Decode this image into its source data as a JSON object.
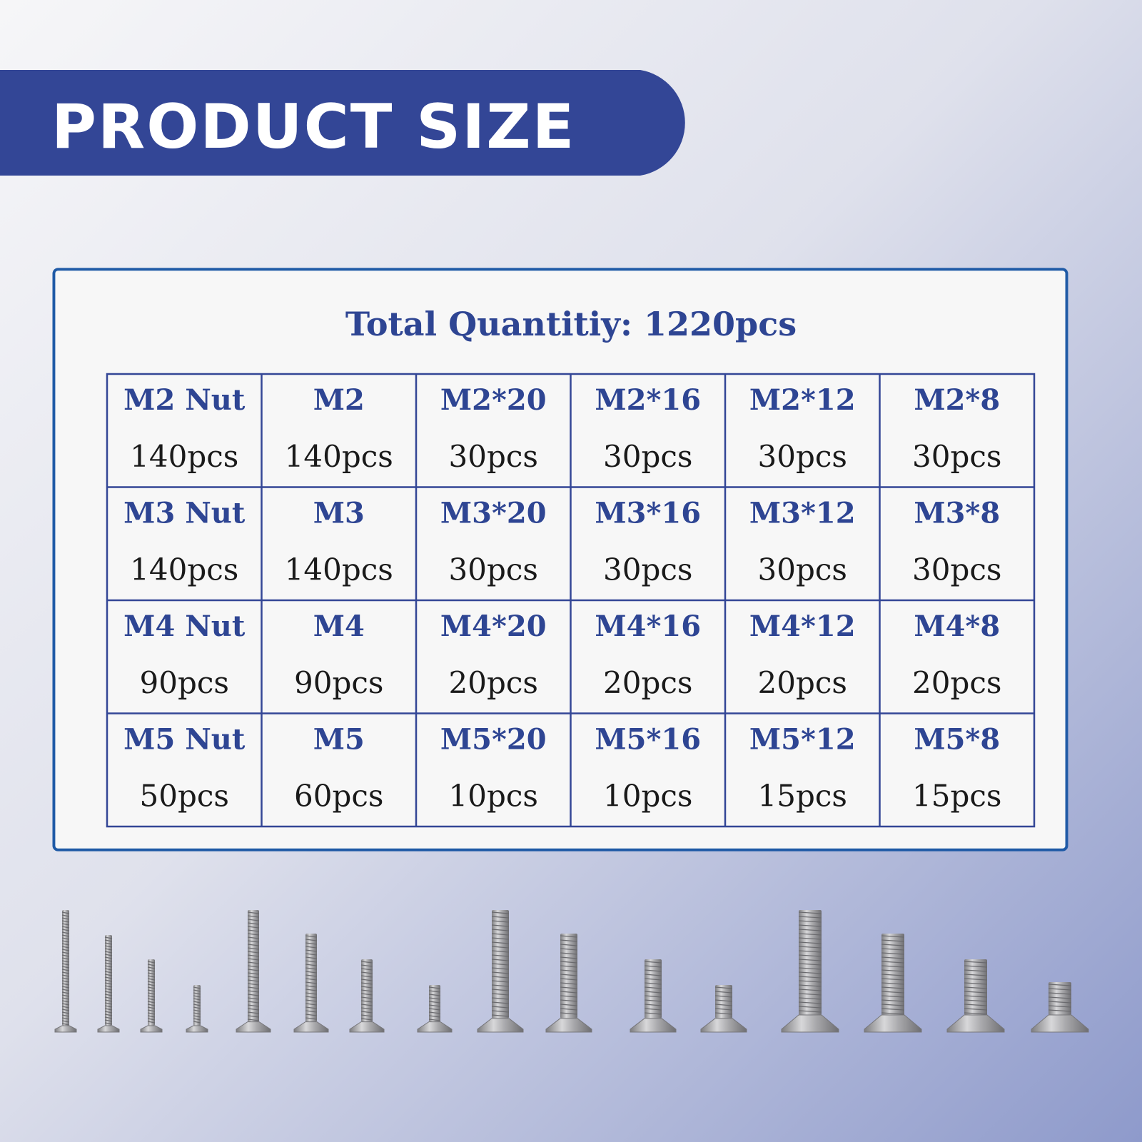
{
  "header": {
    "title": "PRODUCT SIZE"
  },
  "panel": {
    "title": "Total Quantitiy: 1220pcs"
  },
  "table": {
    "rows": [
      [
        {
          "name": "M2 Nut",
          "qty": "140pcs"
        },
        {
          "name": "M2",
          "qty": "140pcs"
        },
        {
          "name": "M2*20",
          "qty": "30pcs"
        },
        {
          "name": "M2*16",
          "qty": "30pcs"
        },
        {
          "name": "M2*12",
          "qty": "30pcs"
        },
        {
          "name": "M2*8",
          "qty": "30pcs"
        }
      ],
      [
        {
          "name": "M3 Nut",
          "qty": "140pcs"
        },
        {
          "name": "M3",
          "qty": "140pcs"
        },
        {
          "name": "M3*20",
          "qty": "30pcs"
        },
        {
          "name": "M3*16",
          "qty": "30pcs"
        },
        {
          "name": "M3*12",
          "qty": "30pcs"
        },
        {
          "name": "M3*8",
          "qty": "30pcs"
        }
      ],
      [
        {
          "name": "M4 Nut",
          "qty": "90pcs"
        },
        {
          "name": "M4",
          "qty": "90pcs"
        },
        {
          "name": "M4*20",
          "qty": "20pcs"
        },
        {
          "name": "M4*16",
          "qty": "20pcs"
        },
        {
          "name": "M4*12",
          "qty": "20pcs"
        },
        {
          "name": "M4*8",
          "qty": "20pcs"
        }
      ],
      [
        {
          "name": "M5 Nut",
          "qty": "50pcs"
        },
        {
          "name": "M5",
          "qty": "60pcs"
        },
        {
          "name": "M5*20",
          "qty": "10pcs"
        },
        {
          "name": "M5*16",
          "qty": "10pcs"
        },
        {
          "name": "M5*12",
          "qty": "15pcs"
        },
        {
          "name": "M5*8",
          "qty": "15pcs"
        }
      ]
    ]
  }
}
